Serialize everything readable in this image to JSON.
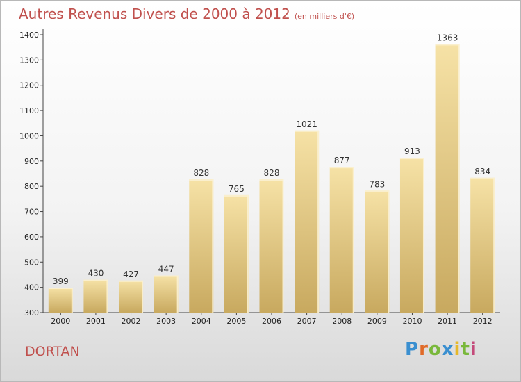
{
  "header": {
    "title": "Autres Revenus Divers de 2000 à 2012",
    "subtitle": "(en milliers d'€)"
  },
  "footer": {
    "location": "DORTAN",
    "logo_text": "Proxiti"
  },
  "chart_data": {
    "type": "bar",
    "title": "Autres Revenus Divers de 2000 à 2012",
    "subtitle": "(en milliers d'€)",
    "categories": [
      "2000",
      "2001",
      "2002",
      "2003",
      "2004",
      "2005",
      "2006",
      "2007",
      "2008",
      "2009",
      "2010",
      "2011",
      "2012"
    ],
    "values": [
      399,
      430,
      427,
      447,
      828,
      765,
      828,
      1021,
      877,
      783,
      913,
      1363,
      834
    ],
    "ylim": [
      300,
      1400
    ],
    "yticks": [
      300,
      400,
      500,
      600,
      700,
      800,
      900,
      1000,
      1100,
      1200,
      1300,
      1400
    ],
    "grid": false,
    "colors": {
      "bar_light": "#f5dfa0",
      "bar_dark": "#c9ab62",
      "title": "#c0504d"
    }
  }
}
